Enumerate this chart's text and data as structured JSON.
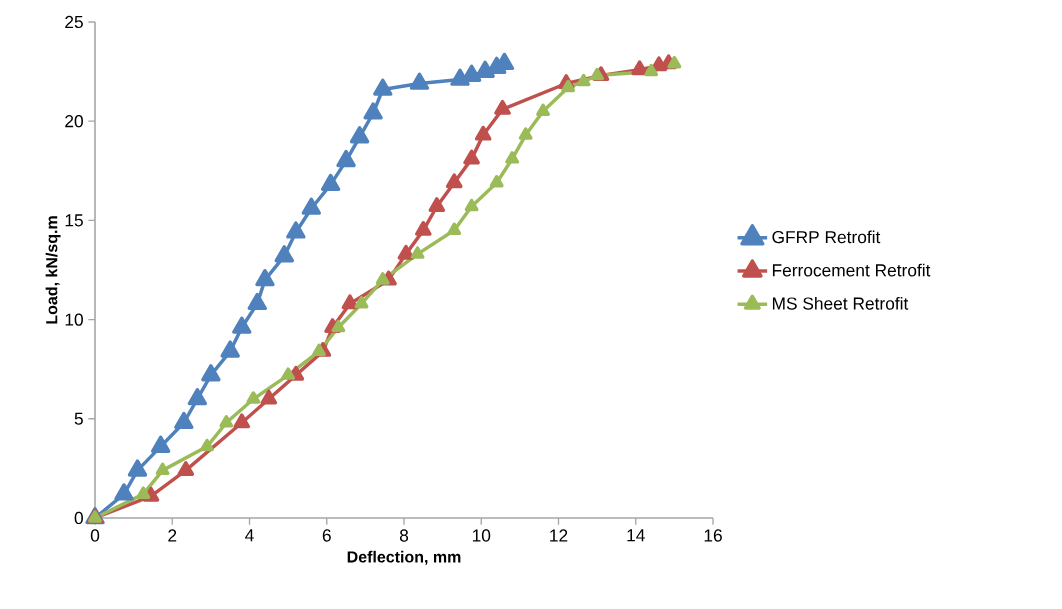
{
  "chart_data": {
    "type": "line",
    "xlabel": "Deflection, mm",
    "ylabel": "Load, kN/sq.m",
    "xlim": [
      0,
      16
    ],
    "ylim": [
      0,
      25
    ],
    "xticks": [
      0,
      2,
      4,
      6,
      8,
      10,
      12,
      14,
      16
    ],
    "yticks": [
      0,
      5,
      10,
      15,
      20,
      25
    ],
    "marker": "triangle",
    "legend": "right",
    "grid": false,
    "series": [
      {
        "name": "GFRP Retrofit",
        "color": "#4f81bd",
        "x": [
          0,
          0.75,
          1.1,
          1.7,
          2.3,
          2.65,
          3.0,
          3.5,
          3.8,
          4.2,
          4.4,
          4.9,
          5.2,
          5.6,
          6.1,
          6.5,
          6.85,
          7.2,
          7.45,
          8.4,
          9.45,
          9.75,
          10.1,
          10.4,
          10.6
        ],
        "values": [
          0,
          1.2,
          2.4,
          3.6,
          4.8,
          6.0,
          7.2,
          8.4,
          9.6,
          10.8,
          12.0,
          13.2,
          14.4,
          15.6,
          16.8,
          18.0,
          19.2,
          20.4,
          21.6,
          21.9,
          22.1,
          22.3,
          22.5,
          22.7,
          22.9
        ]
      },
      {
        "name": "Ferrocement Retrofit",
        "color": "#c0504d",
        "x": [
          0,
          1.45,
          2.35,
          3.8,
          4.5,
          5.2,
          5.9,
          6.15,
          6.6,
          7.6,
          8.05,
          8.5,
          8.85,
          9.3,
          9.75,
          10.05,
          10.55,
          12.2,
          13.1,
          14.1,
          14.6,
          14.85
        ],
        "values": [
          0,
          1.1,
          2.4,
          4.8,
          6.0,
          7.2,
          8.4,
          9.6,
          10.8,
          12.0,
          13.3,
          14.5,
          15.7,
          16.9,
          18.1,
          19.3,
          20.6,
          21.9,
          22.3,
          22.6,
          22.8,
          22.9
        ]
      },
      {
        "name": "MS Sheet Retrofit",
        "color": "#9bbb59",
        "x": [
          0,
          1.25,
          1.75,
          2.9,
          3.4,
          4.1,
          5.0,
          5.8,
          6.3,
          6.9,
          7.45,
          8.35,
          9.3,
          9.75,
          10.4,
          10.8,
          11.15,
          11.6,
          12.25,
          12.65,
          13.0,
          14.4,
          15.0
        ],
        "values": [
          0,
          1.2,
          2.4,
          3.6,
          4.8,
          6.0,
          7.2,
          8.4,
          9.6,
          10.8,
          12.0,
          13.3,
          14.5,
          15.7,
          16.9,
          18.1,
          19.3,
          20.5,
          21.7,
          22.0,
          22.3,
          22.5,
          22.9
        ]
      }
    ]
  }
}
